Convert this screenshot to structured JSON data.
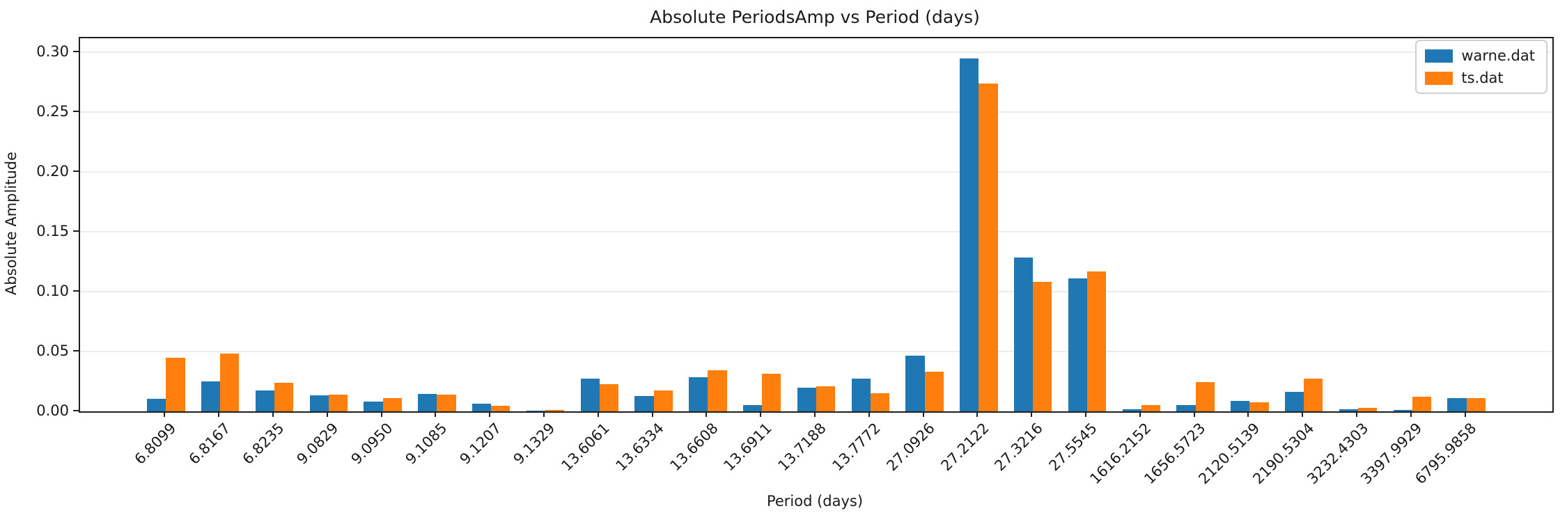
{
  "figure": {
    "title": "Absolute PeriodsAmp vs Period (days)",
    "xlabel": "Period (days)",
    "ylabel": "Absolute Amplitude"
  },
  "chart_data": {
    "type": "bar",
    "title": "Absolute PeriodsAmp vs Period (days)",
    "xlabel": "Period (days)",
    "ylabel": "Absolute Amplitude",
    "grid": "horizontal",
    "legend_position": "upper right",
    "categories": [
      "6.8099",
      "6.8167",
      "6.8235",
      "9.0829",
      "9.0950",
      "9.1085",
      "9.1207",
      "9.1329",
      "13.6061",
      "13.6334",
      "13.6608",
      "13.6911",
      "13.7188",
      "13.7772",
      "27.0926",
      "27.2122",
      "27.3216",
      "27.5545",
      "1616.2152",
      "1656.5723",
      "2120.5139",
      "2190.5304",
      "3232.4303",
      "3397.9929",
      "6795.9858"
    ],
    "series": [
      {
        "name": "warne.dat",
        "color": "#1f77b4",
        "values": [
          0.0105,
          0.025,
          0.0174,
          0.0132,
          0.0083,
          0.0146,
          0.0065,
          0.0003,
          0.0273,
          0.0128,
          0.0283,
          0.0053,
          0.02,
          0.0273,
          0.0464,
          0.295,
          0.1285,
          0.111,
          0.0018,
          0.0054,
          0.0089,
          0.0163,
          0.002,
          0.0014,
          0.0109
        ]
      },
      {
        "name": "ts.dat",
        "color": "#ff7f0e",
        "values": [
          0.0445,
          0.0485,
          0.0237,
          0.0138,
          0.0109,
          0.0138,
          0.0049,
          0.001,
          0.0229,
          0.0174,
          0.0342,
          0.0312,
          0.0208,
          0.0153,
          0.0329,
          0.274,
          0.108,
          0.117,
          0.0052,
          0.0242,
          0.0077,
          0.0272,
          0.003,
          0.0123,
          0.0109
        ]
      }
    ],
    "ylim": [
      0,
      0.3116
    ],
    "yticks": [
      0.0,
      0.05,
      0.1,
      0.15,
      0.2,
      0.25,
      0.3
    ],
    "ytick_labels": [
      "0.00",
      "0.05",
      "0.10",
      "0.15",
      "0.20",
      "0.25",
      "0.30"
    ]
  }
}
